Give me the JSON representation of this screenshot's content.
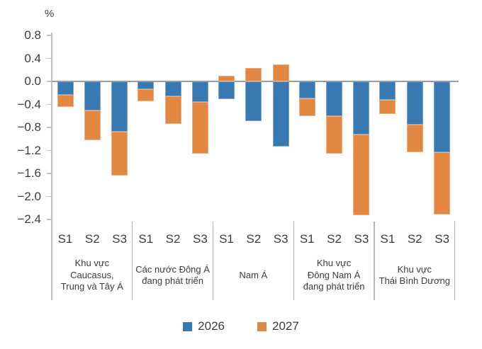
{
  "chart_data": {
    "type": "bar",
    "stacked": true,
    "ylabel": "%",
    "ylim": [
      -2.4,
      0.8
    ],
    "ytick_step": 0.4,
    "grid": false,
    "legend_position": "bottom",
    "series_names": [
      "2026",
      "2027"
    ],
    "series_colors": [
      "#3879B1",
      "#E28642"
    ],
    "scenarios": [
      "S1",
      "S2",
      "S3"
    ],
    "groups": [
      {
        "label": "Khu vực Caucasus, Trung và Tây Á",
        "label_lines": [
          "Khu vực",
          "Caucasus,",
          "Trung và Tây Á"
        ],
        "series": [
          {
            "name": "2026",
            "values": [
              -0.23,
              -0.5,
              -0.87
            ]
          },
          {
            "name": "2027",
            "values": [
              -0.21,
              -0.52,
              -0.77
            ]
          }
        ]
      },
      {
        "label": "Các nước Đông Á đang phát triển",
        "label_lines": [
          "Các nước Đông Á",
          "đang phát triển"
        ],
        "series": [
          {
            "name": "2026",
            "values": [
              -0.13,
              -0.26,
              -0.36
            ]
          },
          {
            "name": "2027",
            "values": [
              -0.22,
              -0.48,
              -0.9
            ]
          }
        ]
      },
      {
        "label": "Nam Á",
        "label_lines": [
          "Nam Á"
        ],
        "series": [
          {
            "name": "2026",
            "values": [
              -0.31,
              -0.69,
              -1.13
            ]
          },
          {
            "name": "2027",
            "values": [
              0.1,
              0.23,
              0.3
            ]
          }
        ]
      },
      {
        "label": "Khu vực Đông Nam Á đang phát triển",
        "label_lines": [
          "Khu vực",
          "Đông Nam Á",
          "đang phát triển"
        ],
        "series": [
          {
            "name": "2026",
            "values": [
              -0.3,
              -0.6,
              -0.92
            ]
          },
          {
            "name": "2027",
            "values": [
              -0.3,
              -0.66,
              -1.41
            ]
          }
        ]
      },
      {
        "label": "Khu vực Thái Bình Dương",
        "label_lines": [
          "Khu vực",
          "Thái Bình Dương"
        ],
        "series": [
          {
            "name": "2026",
            "values": [
              -0.32,
              -0.75,
              -1.23
            ]
          },
          {
            "name": "2027",
            "values": [
              -0.24,
              -0.48,
              -1.08
            ]
          }
        ]
      }
    ]
  },
  "legend": {
    "items": [
      {
        "label": "2026"
      },
      {
        "label": "2027"
      }
    ]
  }
}
